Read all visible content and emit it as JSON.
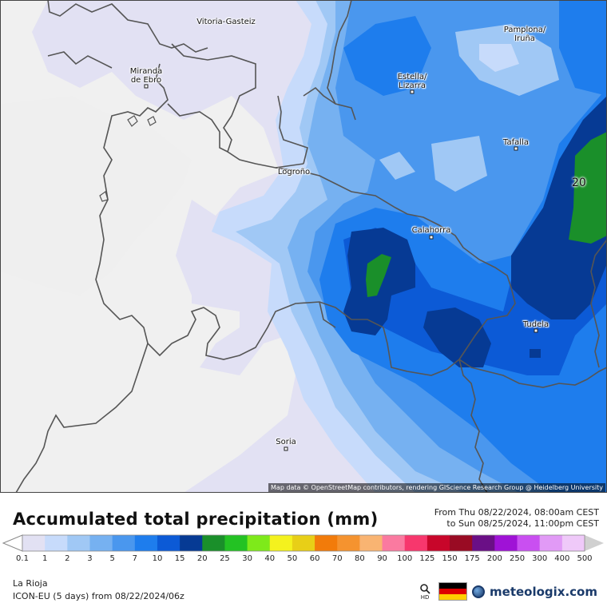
{
  "map": {
    "cities": [
      {
        "name": "Vitoria-Gasteiz",
        "dot": false
      },
      {
        "name": "Pamplona/\nIruña",
        "dot": false
      },
      {
        "name": "Miranda\nde Ebro",
        "dot": true
      },
      {
        "name": "Estella/\nLizarra",
        "dot": true
      },
      {
        "name": "Tafalla",
        "dot": true
      },
      {
        "name": "Logroño",
        "dot": false
      },
      {
        "name": "Calahorra",
        "dot": true
      },
      {
        "name": "Tudela",
        "dot": true
      },
      {
        "name": "Soria",
        "dot": true
      }
    ],
    "value_label": "20",
    "attribution": "Map data © OpenStreetMap contributors, rendering GIScience Research Group @ Heidelberg University"
  },
  "header": {
    "title": "Accumulated total precipitation (mm)",
    "period_from": "From Thu 08/22/2024, 08:00am CEST",
    "period_to": "to Sun 08/25/2024, 11:00pm CEST"
  },
  "legend": {
    "labels": [
      "0.1",
      "1",
      "2",
      "3",
      "5",
      "7",
      "10",
      "15",
      "20",
      "25",
      "30",
      "40",
      "50",
      "60",
      "70",
      "80",
      "90",
      "100",
      "125",
      "150",
      "175",
      "200",
      "250",
      "300",
      "400",
      "500"
    ],
    "colors": [
      "#e2e1f3",
      "#c7dbfb",
      "#a0c8f5",
      "#76b1f1",
      "#4a97ee",
      "#1e7ded",
      "#0c5ad6",
      "#063a94",
      "#1a8f2a",
      "#23c223",
      "#7eea1a",
      "#f4f21e",
      "#e8cf17",
      "#f27b0a",
      "#f5932f",
      "#f9b472",
      "#fa7aa0",
      "#f7376d",
      "#c8062a",
      "#990b23",
      "#6a0f86",
      "#9f12d6",
      "#c94ff1",
      "#e19af6",
      "#efc9f9",
      "#f5eafb",
      "#d0d0d0"
    ]
  },
  "footer": {
    "region": "La Rioja",
    "model": "ICON-EU (5 days) from 08/22/2024/06z",
    "hd_label": "HD",
    "brand": "meteologix.com"
  },
  "colors": {
    "flag": [
      "#000000",
      "#dd0000",
      "#ffce00"
    ]
  }
}
